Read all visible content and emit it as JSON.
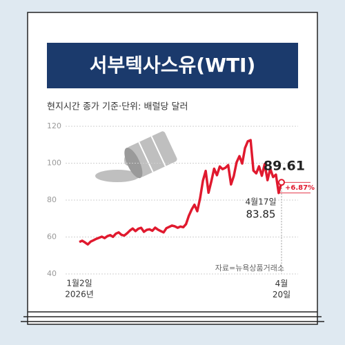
{
  "chart_data": {
    "type": "line",
    "title": "서부텍사스유(WTI)",
    "subtitle": "현지시간 종가 기준·단위: 배럴당 달러",
    "source": "자료=뉴욕상품거래소",
    "change_label": "+6.87%",
    "x_year_label": "2026년",
    "categories": [
      "1월2일",
      null,
      null,
      null,
      null,
      null,
      null,
      null,
      null,
      null,
      null,
      null,
      null,
      null,
      null,
      null,
      null,
      null,
      null,
      null,
      null,
      null,
      null,
      null,
      null,
      null,
      null,
      null,
      null,
      null,
      null,
      null,
      null,
      null,
      null,
      null,
      null,
      null,
      null,
      null,
      null,
      null,
      null,
      null,
      null,
      null,
      null,
      null,
      null,
      null,
      null,
      null,
      null,
      null,
      null,
      null,
      null,
      null,
      null,
      null,
      null,
      null,
      null,
      null,
      null,
      null,
      null,
      null,
      null,
      null,
      null,
      "4월17일",
      "4월 20일"
    ],
    "values": [
      57.3,
      58.0,
      57.1,
      56.0,
      57.5,
      58.2,
      59.0,
      59.6,
      60.2,
      59.4,
      60.5,
      61.0,
      60.1,
      61.8,
      62.5,
      61.2,
      60.8,
      62.0,
      63.5,
      64.6,
      63.2,
      64.5,
      65.0,
      62.8,
      63.9,
      64.2,
      63.4,
      65.1,
      64.0,
      63.2,
      62.5,
      64.8,
      65.5,
      66.2,
      65.8,
      65.0,
      65.7,
      65.3,
      67.0,
      71.5,
      74.9,
      77.5,
      74.0,
      81.0,
      90.5,
      95.8,
      84.0,
      90.2,
      97.0,
      93.5,
      98.2,
      96.8,
      97.5,
      99.0,
      88.5,
      93.0,
      100.5,
      103.8,
      99.8,
      108.2,
      111.9,
      112.5,
      96.0,
      94.5,
      98.3,
      93.2,
      99.5,
      90.8,
      97.0,
      92.5,
      93.8,
      83.85,
      89.61
    ],
    "color": "#e0192e",
    "ylim": [
      40,
      120
    ],
    "yticks": [
      40,
      60,
      80,
      100,
      120
    ],
    "grid": true
  }
}
